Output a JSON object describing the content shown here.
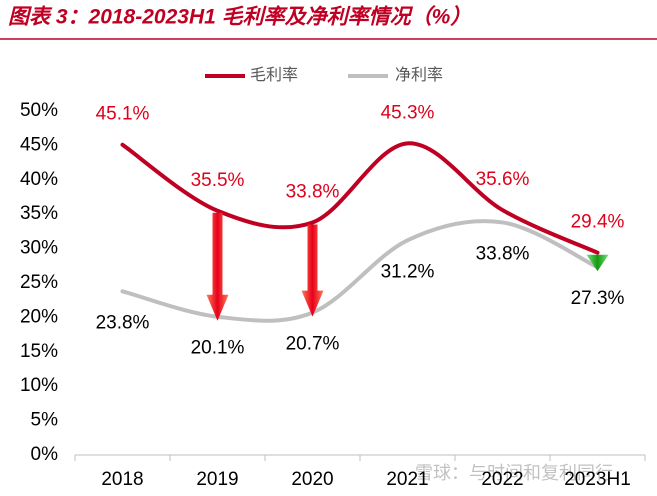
{
  "chart_data": {
    "type": "line",
    "title": "图表 3：2018-2023H1 毛利率及净利率情况（%）",
    "categories": [
      "2018",
      "2019",
      "2020",
      "2021",
      "2022",
      "2023H1"
    ],
    "series": [
      {
        "name": "毛利率",
        "color": "#c00023",
        "values": [
          45.1,
          35.5,
          33.8,
          45.3,
          35.6,
          29.4
        ],
        "value_labels": [
          "45.1%",
          "35.5%",
          "33.8%",
          "45.3%",
          "35.6%",
          "29.4%"
        ],
        "label_color": "#e0001b"
      },
      {
        "name": "净利率",
        "color": "#bfbfbf",
        "values": [
          23.8,
          20.1,
          20.7,
          31.2,
          33.8,
          27.3
        ],
        "value_labels": [
          "23.8%",
          "20.1%",
          "20.7%",
          "31.2%",
          "33.8%",
          "27.3%"
        ],
        "label_color": "#000000"
      }
    ],
    "ylim": [
      0,
      50
    ],
    "yticks": [
      {
        "value": 0,
        "label": "0%"
      },
      {
        "value": 5,
        "label": "5%"
      },
      {
        "value": 10,
        "label": "10%"
      },
      {
        "value": 15,
        "label": "15%"
      },
      {
        "value": 20,
        "label": "20%"
      },
      {
        "value": 25,
        "label": "25%"
      },
      {
        "value": 30,
        "label": "30%"
      },
      {
        "value": 35,
        "label": "35%"
      },
      {
        "value": 40,
        "label": "40%"
      },
      {
        "value": 45,
        "label": "45%"
      },
      {
        "value": 50,
        "label": "50%"
      }
    ],
    "smooth": true,
    "legend": "top",
    "watermark": "雪球：与时间和复利同行"
  }
}
